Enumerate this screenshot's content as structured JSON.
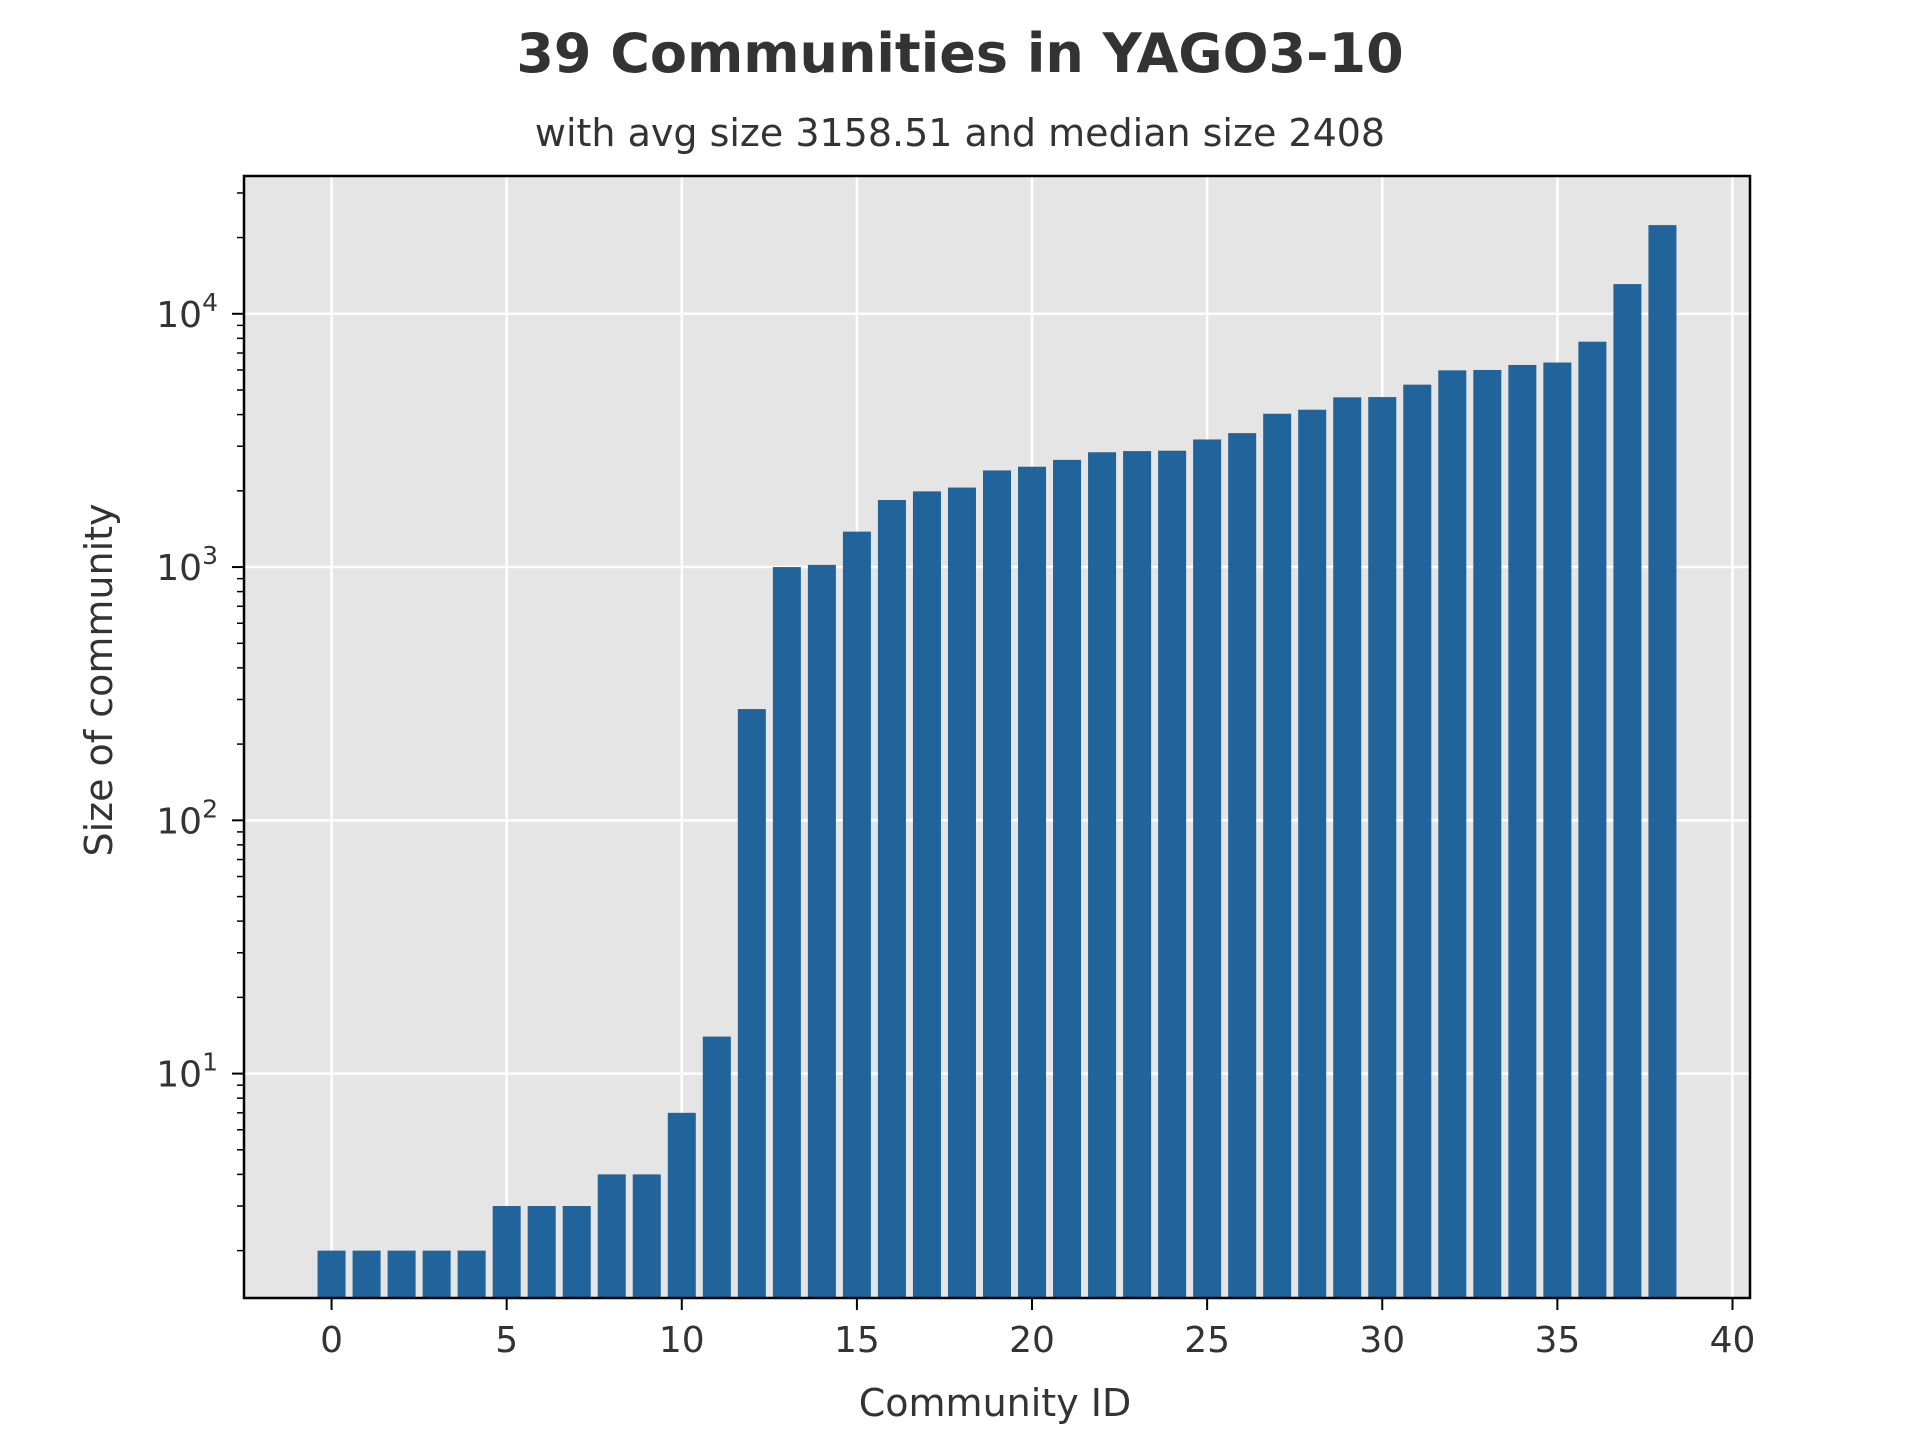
{
  "chart_data": {
    "type": "bar",
    "title": "39 Communities in YAGO3-10",
    "subtitle": "with avg size 3158.51 and median size 2408",
    "xlabel": "Community ID",
    "ylabel": "Size of community",
    "y_scale": "log",
    "xlim": [
      -2.5,
      40.5
    ],
    "ylim": [
      1.3,
      35000
    ],
    "x_ticks": [
      0,
      5,
      10,
      15,
      20,
      25,
      30,
      35,
      40
    ],
    "x_tick_labels": [
      "0",
      "5",
      "10",
      "15",
      "20",
      "25",
      "30",
      "35",
      "40"
    ],
    "y_ticks": [
      {
        "value": 10,
        "base": "10",
        "exp": "1"
      },
      {
        "value": 100,
        "base": "10",
        "exp": "2"
      },
      {
        "value": 1000,
        "base": "10",
        "exp": "3"
      },
      {
        "value": 10000,
        "base": "10",
        "exp": "4"
      }
    ],
    "grid": true,
    "background_color": "#e5e5e5",
    "bar_color": "#21649b",
    "x": [
      0,
      1,
      2,
      3,
      4,
      5,
      6,
      7,
      8,
      9,
      10,
      11,
      12,
      13,
      14,
      15,
      16,
      17,
      18,
      19,
      20,
      21,
      22,
      23,
      24,
      25,
      26,
      27,
      28,
      29,
      30,
      31,
      32,
      33,
      34,
      35,
      36,
      37,
      38
    ],
    "values": [
      2,
      2,
      2,
      2,
      2,
      3,
      3,
      3,
      4,
      4,
      7,
      14,
      275,
      1000,
      1020,
      1380,
      1840,
      1990,
      2060,
      2408,
      2490,
      2650,
      2840,
      2870,
      2880,
      3190,
      3380,
      4030,
      4180,
      4680,
      4690,
      5250,
      5980,
      6000,
      6280,
      6420,
      7760,
      13100,
      22400
    ]
  }
}
